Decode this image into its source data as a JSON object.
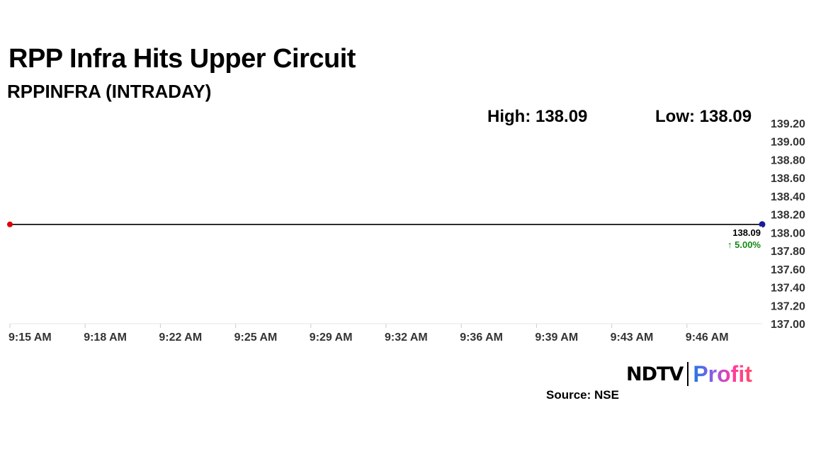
{
  "title": "RPP Infra Hits Upper Circuit",
  "subtitle": "RPPINFRA (INTRADAY)",
  "high_label": "High: 138.09",
  "low_label": "Low: 138.09",
  "source": "Source: NSE",
  "logo": {
    "left": "NDTV",
    "right": "Profit"
  },
  "chart_data": {
    "type": "line",
    "x_ticks": [
      "9:15 AM",
      "9:18 AM",
      "9:22 AM",
      "9:25 AM",
      "9:29 AM",
      "9:32 AM",
      "9:36 AM",
      "9:39 AM",
      "9:43 AM",
      "9:46 AM"
    ],
    "y_ticks": [
      "139.20",
      "139.00",
      "138.80",
      "138.60",
      "138.40",
      "138.20",
      "138.00",
      "137.80",
      "137.60",
      "137.40",
      "137.20",
      "137.00"
    ],
    "ylim": [
      137.0,
      139.2
    ],
    "x": [
      "9:15 AM",
      "9:50 AM"
    ],
    "values": [
      138.09,
      138.09
    ],
    "last_value_label": "138.09",
    "change_label": "↑ 5.00%",
    "colors": {
      "line": "#000000",
      "start_marker": "#e00000",
      "end_marker": "#1a1aa0",
      "change": "#138a13"
    },
    "y_axis_position": "right",
    "grid": false
  }
}
